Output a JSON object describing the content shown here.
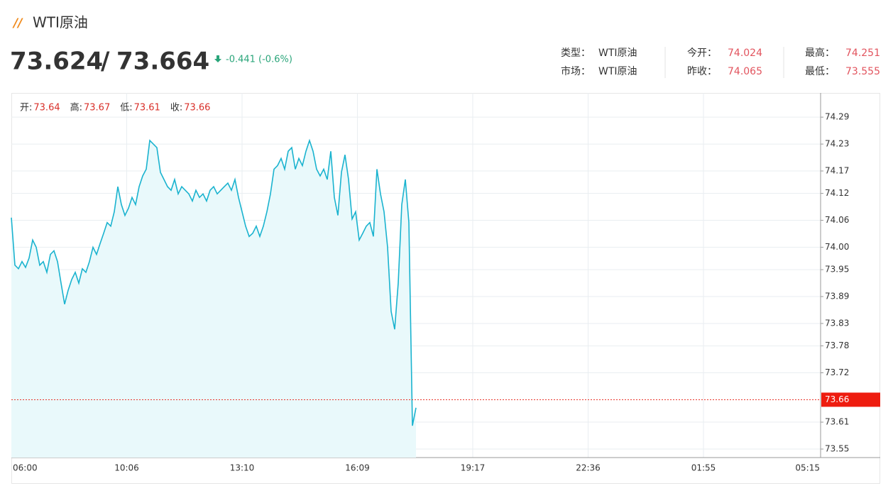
{
  "header": {
    "title": "WTI原油",
    "bid": 73.624,
    "ask": 73.664,
    "change": "-0.441 (-0.6%)",
    "info": [
      [
        {
          "label": "类型：",
          "value": "WTI原油"
        },
        {
          "label": "今开：",
          "value": 74.024
        },
        {
          "label": "最高：",
          "value": 74.251
        }
      ],
      [
        {
          "label": "市场：",
          "value": "WTI原油"
        },
        {
          "label": "昨收：",
          "value": 74.065
        },
        {
          "label": "最低：",
          "value": 73.555
        }
      ]
    ]
  },
  "chart_data": {
    "type": "line",
    "color": "#1ab3cf",
    "fill": "#e9f9fb",
    "ohlc": [
      {
        "label": "开:",
        "value": 73.64
      },
      {
        "label": "高:",
        "value": 73.67
      },
      {
        "label": "低:",
        "value": 73.61
      },
      {
        "label": "收:",
        "value": 73.66
      }
    ],
    "time_labels": [
      "06:00",
      "10:06",
      "13:10",
      "16:09",
      "19:17",
      "22:36",
      "01:55",
      "05:15"
    ],
    "ylim": [
      73.531,
      74.344
    ],
    "yticks": [
      73.55,
      73.61,
      73.72,
      73.78,
      73.83,
      73.89,
      73.95,
      {
        "value": 74.0,
        "label": "74.00"
      },
      74.06,
      74.12,
      74.17,
      74.23,
      74.29
    ],
    "last_price": 73.66,
    "grid": true,
    "values": [
      74.066,
      73.96,
      73.952,
      73.968,
      73.955,
      73.976,
      74.016,
      74.0,
      73.96,
      73.968,
      73.944,
      73.984,
      73.992,
      73.968,
      73.92,
      73.873,
      73.904,
      73.928,
      73.944,
      73.92,
      73.952,
      73.944,
      73.968,
      74.0,
      73.984,
      74.008,
      74.031,
      74.055,
      74.047,
      74.079,
      74.135,
      74.095,
      74.071,
      74.087,
      74.111,
      74.095,
      74.135,
      74.159,
      74.174,
      74.238,
      74.23,
      74.222,
      74.167,
      74.151,
      74.135,
      74.127,
      74.151,
      74.119,
      74.135,
      74.127,
      74.119,
      74.103,
      74.127,
      74.111,
      74.119,
      74.103,
      74.127,
      74.135,
      74.119,
      74.127,
      74.135,
      74.143,
      74.127,
      74.151,
      74.111,
      74.079,
      74.047,
      74.024,
      74.031,
      74.047,
      74.024,
      74.047,
      74.079,
      74.119,
      74.174,
      74.182,
      74.198,
      74.174,
      74.214,
      74.222,
      74.174,
      74.198,
      74.182,
      74.214,
      74.238,
      74.214,
      74.174,
      74.159,
      74.174,
      74.151,
      74.214,
      74.111,
      74.071,
      74.167,
      74.206,
      74.151,
      74.063,
      74.079,
      74.016,
      74.031,
      74.047,
      74.055,
      74.024,
      74.174,
      74.119,
      74.079,
      74.0,
      73.857,
      73.817,
      73.92,
      74.095,
      74.151,
      74.055,
      73.602,
      73.642
    ]
  }
}
